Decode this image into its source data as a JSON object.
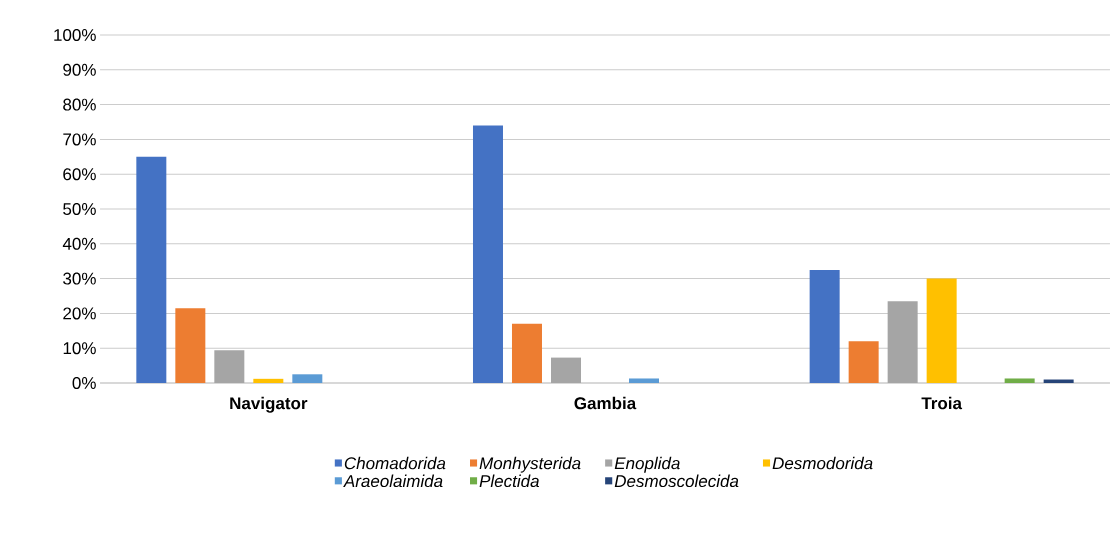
{
  "chart_data": {
    "type": "bar",
    "categories": [
      "Navigator",
      "Gambia",
      "Troia"
    ],
    "series": [
      {
        "name": "Chomadorida",
        "color": "#4472c4",
        "values": [
          65,
          74,
          32.5
        ]
      },
      {
        "name": "Monhysterida",
        "color": "#ed7d31",
        "values": [
          21.5,
          17,
          12
        ]
      },
      {
        "name": "Enoplida",
        "color": "#a5a5a5",
        "values": [
          9.4,
          7.3,
          23.5
        ]
      },
      {
        "name": "Desmodorida",
        "color": "#ffc000",
        "values": [
          1.2,
          0,
          30
        ]
      },
      {
        "name": "Araeolaimida",
        "color": "#5b9bd5",
        "values": [
          2.5,
          1.3,
          0
        ]
      },
      {
        "name": "Plectida",
        "color": "#70ad47",
        "values": [
          0,
          0,
          1.3
        ]
      },
      {
        "name": "Desmoscolecida",
        "color": "#264478",
        "values": [
          0,
          0,
          1
        ]
      }
    ],
    "ylim": [
      0,
      100
    ],
    "yticks": [
      {
        "value": 0,
        "label": "0%"
      },
      {
        "value": 10,
        "label": "10%"
      },
      {
        "value": 20,
        "label": "20%"
      },
      {
        "value": 30,
        "label": "30%"
      },
      {
        "value": 40,
        "label": "40%"
      },
      {
        "value": 50,
        "label": "50%"
      },
      {
        "value": 60,
        "label": "60%"
      },
      {
        "value": 70,
        "label": "70%"
      },
      {
        "value": 80,
        "label": "80%"
      },
      {
        "value": 90,
        "label": "90%"
      },
      {
        "value": 100,
        "label": "100%"
      }
    ],
    "grid": "y",
    "legend": "bottom"
  }
}
